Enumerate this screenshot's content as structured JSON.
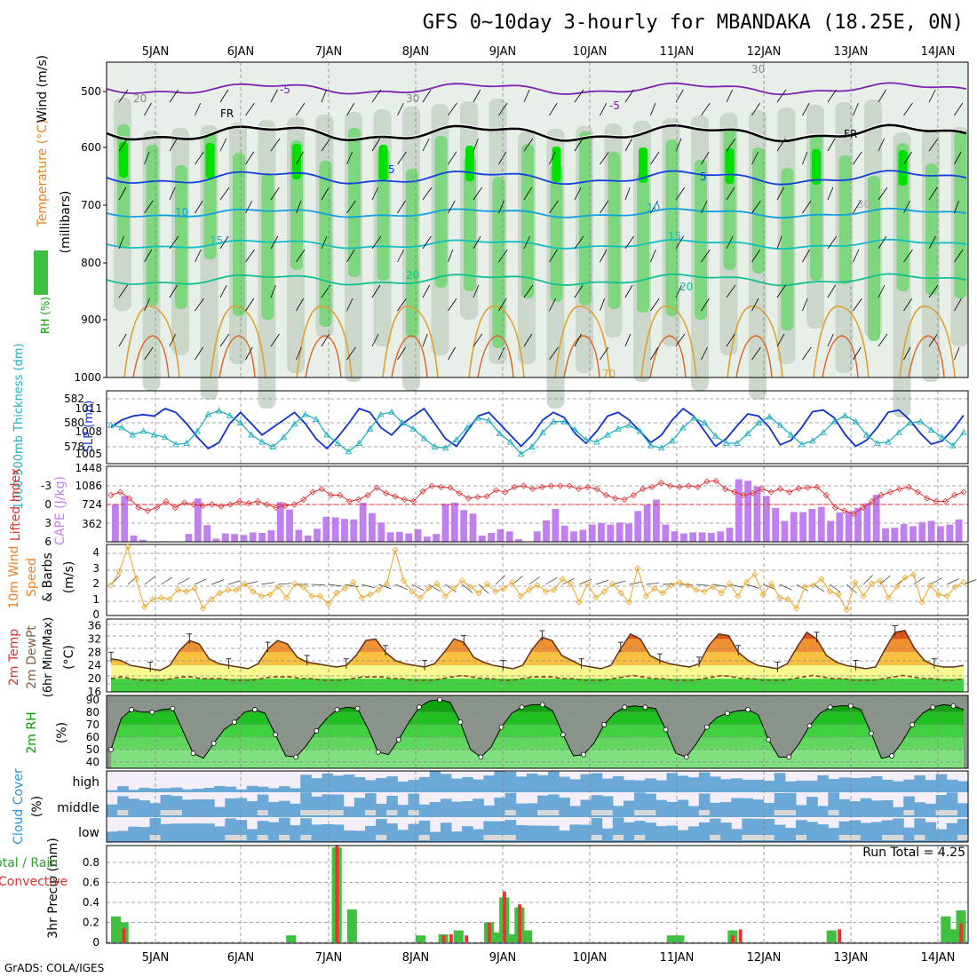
{
  "title": "GFS 0~10day 3-hourly for MBANDAKA (18.25E, 0N)",
  "credit": "GrADS: COLA/IGES",
  "colors": {
    "rh_light": "#c8d4c8",
    "rh_mid": "#7ed67e",
    "rh_high": "#00e000",
    "wind_label": "#00a0e0",
    "cape_bar": "#c080f0",
    "li_line": "#e03030",
    "slp_line": "#1030d0",
    "thick_line": "#20b0c0",
    "wind10_line": "#f0a020",
    "rain_total": "#40c040",
    "rain_conv": "#f03030",
    "cloud": "#6aa8d8"
  },
  "chart_data": [
    {
      "type": "area",
      "name": "upper_air",
      "x": [
        "5JAN",
        "6JAN",
        "7JAN",
        "8JAN",
        "9JAN",
        "10JAN",
        "11JAN",
        "12JAN",
        "13JAN",
        "14JAN"
      ],
      "y_ticks": [
        "500",
        "600",
        "700",
        "800",
        "900",
        "1000"
      ],
      "ylabel": "(millibars)",
      "legend_labels": [
        "RH (%)",
        "Temperature (°C)",
        "Wind (m/s)"
      ],
      "isotherm_labels": [
        "-5",
        "FR",
        "5",
        "10",
        "15",
        "20",
        "20",
        "-5",
        "FR",
        "5",
        "10",
        "15",
        "20",
        "30",
        "30",
        "30",
        "70",
        "20"
      ]
    },
    {
      "type": "line",
      "name": "slp_thickness",
      "ylabel_left": "1000-500mb Thickness (dm)",
      "ylabel_right": "SLP (mb)",
      "left_ticks": [
        "582",
        "580",
        "578"
      ],
      "right_ticks": [
        "1011",
        "1008",
        "1005"
      ],
      "series": [
        {
          "name": "SLP",
          "values": [
            1008.5,
            1009.5,
            1010.0,
            1010.2,
            1010.0,
            1011.0,
            1010.5,
            1009.0,
            1007.2,
            1005.7,
            1006.5,
            1009.0,
            1010.5,
            1009.0,
            1007.5,
            1008.5,
            1009.5,
            1010.5,
            1009.0,
            1007.0,
            1005.7,
            1007.2,
            1009.0,
            1011.0,
            1010.5,
            1008.5,
            1007.5,
            1009.0,
            1010.0,
            1011.0,
            1009.0,
            1007.0,
            1006.0,
            1008.0,
            1010.0,
            1010.5,
            1009.0,
            1007.5,
            1006.0,
            1007.5,
            1009.5,
            1010.5,
            1009.8,
            1007.7,
            1006.4,
            1008.0,
            1010.0,
            1010.5,
            1009.5,
            1008.0,
            1006.5,
            1007.5,
            1009.5,
            1011.0,
            1010.0,
            1008.0,
            1006.0,
            1007.0,
            1008.7,
            1010.3,
            1010.0,
            1008.5,
            1006.2,
            1006.8,
            1008.5,
            1010.6,
            1010.8,
            1009.8,
            1007.6,
            1006.0,
            1006.8,
            1008.5,
            1010.5,
            1010.8,
            1009.5,
            1007.7,
            1006.3,
            1006.7,
            1008.2,
            1010.1
          ]
        },
        {
          "name": "Thickness",
          "values": [
            579.8,
            579.6,
            579.0,
            579.3,
            579.0,
            578.8,
            578.2,
            578.3,
            579.3,
            580.7,
            581.0,
            580.6,
            580.0,
            579.0,
            578.4,
            578.0,
            578.8,
            579.9,
            580.7,
            580.3,
            579.0,
            578.3,
            577.6,
            578.3,
            579.5,
            580.7,
            580.9,
            580.0,
            579.5,
            578.7,
            578.0,
            577.9,
            578.6,
            579.6,
            580.4,
            580.2,
            579.1,
            578.4,
            577.4,
            578.0,
            579.2,
            580.1,
            580.1,
            579.4,
            578.6,
            578.4,
            579.0,
            579.5,
            579.8,
            579.3,
            578.1,
            577.9,
            578.5,
            579.6,
            580.4,
            580.0,
            578.9,
            578.3,
            578.3,
            579.1,
            580.0,
            580.5,
            579.8,
            579.0,
            578.2,
            578.5,
            579.2,
            580.1,
            580.6,
            580.1,
            579.0,
            578.3,
            578.4,
            579.2,
            580.0,
            580.1,
            579.4,
            578.8,
            578.1,
            579.2
          ]
        }
      ]
    },
    {
      "type": "bar",
      "name": "cape_li",
      "ylabel_left": "Lifted Index",
      "ylabel_right": "CAPE (J/kg)",
      "li_ticks": [
        "-3",
        "0",
        "3",
        "6"
      ],
      "cape_ticks": [
        "1448",
        "1086",
        "724",
        "362"
      ],
      "series": [
        {
          "name": "CAPE",
          "values": [
            720,
            880,
            120,
            40,
            0,
            10,
            0,
            0,
            150,
            830,
            320,
            60,
            160,
            150,
            130,
            180,
            170,
            220,
            760,
            620,
            230,
            120,
            250,
            480,
            470,
            440,
            430,
            750,
            550,
            370,
            180,
            190,
            160,
            240,
            100,
            150,
            730,
            750,
            610,
            540,
            120,
            170,
            240,
            200,
            50,
            0,
            200,
            410,
            630,
            310,
            200,
            230,
            330,
            360,
            330,
            370,
            350,
            590,
            710,
            810,
            330,
            200,
            160,
            180,
            180,
            170,
            200,
            270,
            1200,
            1170,
            1060,
            880,
            650,
            400,
            570,
            570,
            630,
            670,
            400,
            560,
            580,
            650,
            740,
            900,
            260,
            270,
            340,
            300,
            380,
            400,
            300,
            330,
            430
          ]
        },
        {
          "name": "Lifted Index",
          "values": [
            -1.5,
            -2.0,
            -1.0,
            0.5,
            1.0,
            0.5,
            -0.5,
            0.5,
            -0.3,
            0.0,
            0.2,
            0.0,
            0.3,
            0.0,
            -0.5,
            -0.2,
            -0.5,
            0.0,
            0.5,
            0.2,
            0.0,
            -0.8,
            -2.0,
            -2.5,
            -1.5,
            -1.5,
            -0.5,
            -0.8,
            -1.5,
            -2.7,
            -1.8,
            -1.3,
            -0.8,
            -0.5,
            -2.1,
            -3.0,
            -2.8,
            -2.7,
            -1.8,
            -1.0,
            -1.2,
            -1.3,
            -2.3,
            -2.0,
            -2.8,
            -3.0,
            -2.5,
            -2.8,
            -3.0,
            -3.0,
            -3.0,
            -2.5,
            -2.8,
            -2.5,
            -1.5,
            -1.0,
            -0.8,
            -1.5,
            -2.5,
            -2.8,
            -3.5,
            -3.0,
            -2.8,
            -3.0,
            -2.8,
            -3.7,
            -3.8,
            -2.5,
            -2.0,
            -1.5,
            -1.8,
            -2.5,
            -2.0,
            -2.5,
            -2.0,
            -2.6,
            -2.7,
            -2.8,
            -1.5,
            0.5,
            1.0,
            1.5,
            0.5,
            -0.5,
            -1.5,
            -2.0,
            -2.5,
            -2.8,
            -2.0,
            -1.0,
            -0.5,
            -0.5,
            -1.5,
            -2.0
          ]
        }
      ]
    },
    {
      "type": "line",
      "name": "wind10m",
      "ylabel": "10m Wind Speed & Barbs (m/s)",
      "y_ticks": [
        "0",
        "1",
        "2",
        "3",
        "4"
      ],
      "series": [
        {
          "name": "Speed",
          "values": [
            1.9,
            2.8,
            4.4,
            2.3,
            0.5,
            1.0,
            1.1,
            1.0,
            1.6,
            1.5,
            1.7,
            0.4,
            1.0,
            1.4,
            1.6,
            1.6,
            2.0,
            1.5,
            1.2,
            1.3,
            1.8,
            1.1,
            2.0,
            1.8,
            1.2,
            1.2,
            0.7,
            1.4,
            1.7,
            2.1,
            1.1,
            1.3,
            1.6,
            2.0,
            4.2,
            2.2,
            1.5,
            1.1,
            1.7,
            2.0,
            1.2,
            1.7,
            2.2,
            1.8,
            1.4,
            2.0,
            1.5,
            1.7,
            2.1,
            1.2,
            1.6,
            1.9,
            1.5,
            1.6,
            2.3,
            2.0,
            0.8,
            2.0,
            1.1,
            1.5,
            2.0,
            1.4,
            0.8,
            3.0,
            1.2,
            1.7,
            1.4,
            1.9,
            2.1,
            1.9,
            1.6,
            1.5,
            1.8,
            1.4,
            2.0,
            1.2,
            2.1,
            2.6,
            1.3,
            2.0,
            1.1,
            1.0,
            0.4,
            1.8,
            1.9,
            2.3,
            1.5,
            1.3,
            0.3,
            2.1,
            1.2,
            2.0,
            2.2,
            1.1,
            1.8,
            2.4,
            2.6,
            0.8,
            1.9,
            1.3,
            1.2,
            1.8,
            2.1
          ]
        }
      ]
    },
    {
      "type": "area",
      "name": "temp2m",
      "ylabel": "2m Temp 2m DewPt (6hr Min/Max) (°C)",
      "y_ticks": [
        "36",
        "32",
        "28",
        "24",
        "20",
        "16"
      ],
      "series": [
        {
          "name": "2m Temp",
          "values": [
            26.0,
            25.5,
            24.0,
            23.5,
            23.0,
            22.5,
            24.0,
            28.5,
            31.5,
            30.5,
            26.0,
            24.5,
            24.0,
            23.5,
            23.0,
            24.5,
            29.0,
            31.5,
            30.5,
            26.5,
            25.0,
            24.5,
            24.0,
            23.5,
            24.0,
            27.0,
            31.5,
            32.0,
            28.0,
            25.5,
            24.5,
            24.0,
            23.5,
            24.5,
            28.0,
            32.0,
            31.0,
            26.5,
            25.0,
            24.0,
            23.5,
            23.0,
            24.0,
            29.0,
            32.5,
            31.5,
            27.0,
            25.5,
            24.0,
            23.5,
            23.0,
            24.0,
            29.0,
            33.5,
            32.0,
            27.0,
            25.5,
            24.5,
            24.0,
            23.5,
            24.5,
            30.0,
            33.5,
            33.0,
            28.0,
            25.5,
            24.0,
            23.5,
            23.0,
            24.5,
            29.5,
            34.0,
            32.0,
            27.0,
            25.0,
            24.0,
            23.5,
            23.0,
            23.5,
            29.0,
            34.0,
            34.5,
            29.0,
            25.5,
            24.0,
            23.5,
            23.5,
            24.0
          ]
        },
        {
          "name": "2m DewPt",
          "values": [
            20.0,
            20.5,
            20.0,
            19.5,
            19.5,
            19.5,
            20.0,
            20.5,
            20.5,
            20.0,
            20.0,
            20.0,
            19.5,
            19.5,
            19.5,
            20.0,
            20.5,
            20.5,
            20.5,
            20.0,
            20.0,
            19.5,
            19.5,
            19.5,
            20.0,
            20.5,
            20.5,
            20.5,
            20.0,
            20.0,
            19.5,
            19.5,
            19.5,
            20.0,
            20.5,
            21.0,
            20.5,
            20.0,
            20.0,
            19.5,
            19.5,
            20.0,
            20.5,
            20.5,
            20.5,
            20.0,
            20.0,
            19.5,
            19.5,
            19.5,
            20.0,
            20.5,
            21.0,
            20.5,
            20.0,
            20.0,
            19.5,
            19.5,
            19.5,
            20.0,
            20.5,
            21.0,
            20.5,
            20.0,
            20.0,
            19.5,
            19.5,
            19.5,
            20.0,
            20.5,
            21.0,
            20.5,
            20.0,
            20.0,
            19.5,
            19.5,
            19.5,
            20.0,
            20.5,
            21.0,
            20.5,
            20.0,
            20.0,
            19.5,
            19.5,
            20.0
          ]
        }
      ]
    },
    {
      "type": "area",
      "name": "rh2m",
      "ylabel": "2m RH (%)",
      "y_ticks": [
        "90",
        "80",
        "70",
        "60",
        "50",
        "40"
      ],
      "series": [
        {
          "name": "2m RH",
          "values": [
            50,
            75,
            82,
            80,
            80,
            82,
            83,
            65,
            47,
            43,
            55,
            66,
            72,
            80,
            82,
            79,
            62,
            45,
            44,
            53,
            65,
            75,
            82,
            84,
            83,
            67,
            48,
            46,
            58,
            72,
            84,
            89,
            90,
            88,
            72,
            50,
            44,
            52,
            68,
            79,
            84,
            86,
            86,
            81,
            62,
            45,
            46,
            55,
            70,
            79,
            84,
            85,
            84,
            83,
            66,
            47,
            44,
            55,
            68,
            76,
            79,
            81,
            82,
            78,
            58,
            44,
            44,
            55,
            69,
            79,
            84,
            85,
            85,
            82,
            63,
            43,
            45,
            56,
            70,
            79,
            84,
            86,
            85,
            82
          ]
        }
      ]
    },
    {
      "type": "heatmap",
      "name": "cloud_cover",
      "ylabel": "Cloud Cover (%)",
      "rows": [
        "high",
        "middle",
        "low"
      ]
    },
    {
      "type": "bar",
      "name": "precip",
      "ylabel": "3hr Precip (mm)",
      "legend": [
        "Total / Rain",
        "Convective"
      ],
      "annotation": "Run Total = 4.25",
      "y_ticks": [
        "0.8",
        "0.6",
        "0.4",
        "0.2",
        "0"
      ],
      "series": [
        {
          "name": "Total",
          "values": [
            0.26,
            0.2,
            0,
            0,
            0,
            0,
            0,
            0,
            0,
            0,
            0,
            0,
            0,
            0,
            0,
            0,
            0,
            0,
            0,
            0,
            0,
            0,
            0,
            0.07,
            0,
            0,
            0,
            0,
            0,
            0.95,
            0,
            0.33,
            0,
            0,
            0,
            0,
            0,
            0,
            0,
            0,
            0.07,
            0,
            0,
            0.08,
            0,
            0.12,
            0,
            0,
            0,
            0.2,
            0.1,
            0.45,
            0.08,
            0.35,
            0.12,
            0,
            0,
            0,
            0,
            0,
            0,
            0,
            0,
            0,
            0,
            0,
            0,
            0,
            0,
            0,
            0,
            0,
            0,
            0.07,
            0.07,
            0,
            0,
            0,
            0,
            0,
            0,
            0.12,
            0,
            0,
            0,
            0,
            0,
            0,
            0,
            0,
            0,
            0,
            0,
            0,
            0.12,
            0,
            0,
            0,
            0,
            0,
            0,
            0,
            0,
            0,
            0,
            0,
            0,
            0,
            0,
            0.26,
            0.13,
            0.32
          ]
        },
        {
          "name": "Convective",
          "values": [
            0,
            0.14,
            0,
            0,
            0,
            0,
            0,
            0,
            0,
            0,
            0,
            0,
            0,
            0,
            0,
            0,
            0,
            0,
            0,
            0,
            0,
            0,
            0,
            0,
            0,
            0,
            0,
            0,
            0,
            0.97,
            0,
            0,
            0,
            0,
            0,
            0,
            0,
            0,
            0,
            0,
            0,
            0,
            0,
            0.07,
            0.08,
            0,
            0.07,
            0,
            0,
            0.2,
            0,
            0.51,
            0,
            0.38,
            0,
            0,
            0,
            0,
            0,
            0,
            0,
            0,
            0,
            0,
            0,
            0,
            0,
            0,
            0,
            0,
            0,
            0,
            0,
            0,
            0,
            0,
            0,
            0,
            0,
            0,
            0,
            0.07,
            0.13,
            0,
            0,
            0,
            0,
            0,
            0,
            0,
            0,
            0,
            0,
            0,
            0,
            0.13,
            0,
            0,
            0,
            0,
            0,
            0,
            0,
            0,
            0,
            0,
            0,
            0,
            0,
            0,
            0,
            0.19,
            0
          ]
        }
      ]
    }
  ]
}
